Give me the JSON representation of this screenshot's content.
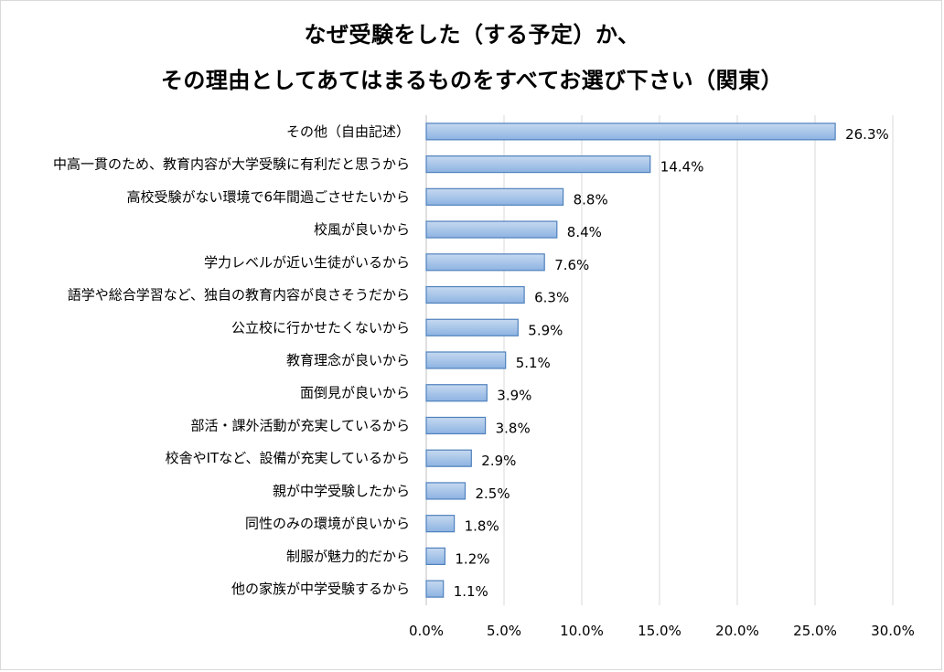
{
  "chart_data": {
    "type": "bar",
    "orientation": "horizontal",
    "title_line1": "なぜ受験をした（する予定）か、",
    "title_line2": "その理由としてあてはまるものをすべてお選び下さい（関東）",
    "categories": [
      "その他（自由記述）",
      "中高一貫のため、教育内容が大学受験に有利だと思うから",
      "高校受験がない環境で6年間過ごさせたいから",
      "校風が良いから",
      "学力レベルが近い生徒がいるから",
      "語学や総合学習など、独自の教育内容が良さそうだから",
      "公立校に行かせたくないから",
      "教育理念が良いから",
      "面倒見が良いから",
      "部活・課外活動が充実しているから",
      "校舎やITなど、設備が充実しているから",
      "親が中学受験したから",
      "同性のみの環境が良いから",
      "制服が魅力的だから",
      "他の家族が中学受験するから"
    ],
    "values": [
      26.3,
      14.4,
      8.8,
      8.4,
      7.6,
      6.3,
      5.9,
      5.1,
      3.9,
      3.8,
      2.9,
      2.5,
      1.8,
      1.2,
      1.1
    ],
    "value_labels": [
      "26.3%",
      "14.4%",
      "8.8%",
      "8.4%",
      "7.6%",
      "6.3%",
      "5.9%",
      "5.1%",
      "3.9%",
      "3.8%",
      "2.9%",
      "2.5%",
      "1.8%",
      "1.2%",
      "1.1%"
    ],
    "xticks": [
      0,
      5,
      10,
      15,
      20,
      25,
      30
    ],
    "xtick_labels": [
      "0.0%",
      "5.0%",
      "10.0%",
      "15.0%",
      "20.0%",
      "25.0%",
      "30.0%"
    ],
    "xlim": [
      0,
      30
    ],
    "xlabel": "",
    "ylabel": "",
    "grid": true,
    "legend": "none"
  },
  "colors": {
    "bar_fill_top": "#c6d9f0",
    "bar_fill_bottom": "#8db3e2",
    "bar_stroke": "#4f81bd",
    "grid": "#d9d9d9",
    "axis": "#bfbfbf"
  }
}
